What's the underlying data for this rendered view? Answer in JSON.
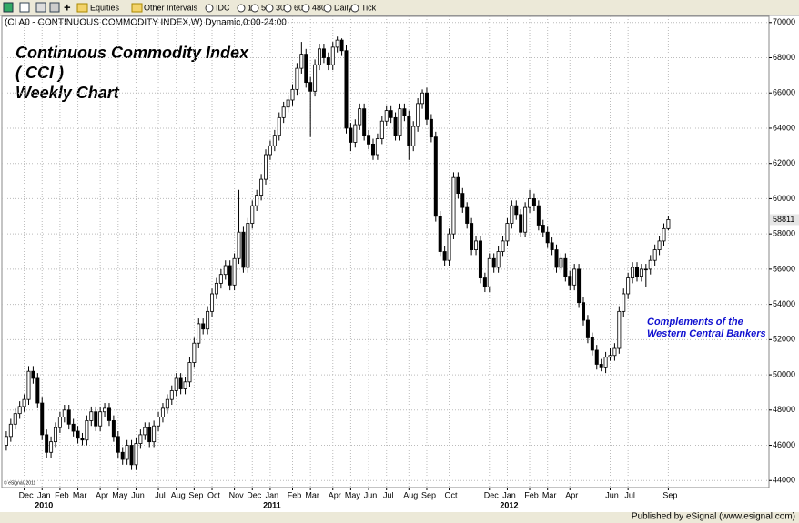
{
  "toolbar": {
    "items": [
      "Equities",
      "Other Intervals",
      "IDC",
      "1",
      "5",
      "30",
      "60",
      "480",
      "Daily",
      "Tick"
    ]
  },
  "chart_data": {
    "type": "candlestick",
    "header": "(CI A0 - CONTINUOUS COMMODITY INDEX,W) Dynamic,0:00-24:00",
    "title_lines": [
      "Continuous Commodity Index",
      "( CCI )",
      "Weekly Chart"
    ],
    "annotation_lines": [
      "Complements of the",
      "Western Central Bankers"
    ],
    "copyright": "© eSignal, 2011",
    "ylim": [
      43600,
      70350
    ],
    "yticks": [
      44000,
      46000,
      48000,
      50000,
      52000,
      54000,
      56000,
      58000,
      60000,
      62000,
      64000,
      66000,
      68000,
      70000
    ],
    "xlim": [
      -1,
      170.5
    ],
    "xticks": [
      {
        "value": 4,
        "label": "Dec"
      },
      {
        "value": 8,
        "label": "Jan"
      },
      {
        "value": 12,
        "label": "Feb"
      },
      {
        "value": 16,
        "label": "Mar"
      },
      {
        "value": 21,
        "label": "Apr"
      },
      {
        "value": 25,
        "label": "May"
      },
      {
        "value": 29,
        "label": "Jun"
      },
      {
        "value": 34,
        "label": "Jul"
      },
      {
        "value": 38,
        "label": "Aug"
      },
      {
        "value": 42,
        "label": "Sep"
      },
      {
        "value": 46,
        "label": "Oct"
      },
      {
        "value": 51,
        "label": "Nov"
      },
      {
        "value": 55,
        "label": "Dec"
      },
      {
        "value": 59,
        "label": "Jan"
      },
      {
        "value": 64,
        "label": "Feb"
      },
      {
        "value": 68,
        "label": "Mar"
      },
      {
        "value": 73,
        "label": "Apr"
      },
      {
        "value": 77,
        "label": "May"
      },
      {
        "value": 81,
        "label": "Jun"
      },
      {
        "value": 85,
        "label": "Jul"
      },
      {
        "value": 90,
        "label": "Aug"
      },
      {
        "value": 94,
        "label": "Sep"
      },
      {
        "value": 99,
        "label": "Oct"
      },
      {
        "value": 108,
        "label": "Dec"
      },
      {
        "value": 112,
        "label": "Jan"
      },
      {
        "value": 117,
        "label": "Feb"
      },
      {
        "value": 121,
        "label": "Mar"
      },
      {
        "value": 126,
        "label": "Apr"
      },
      {
        "value": 135,
        "label": "Jun"
      },
      {
        "value": 139,
        "label": "Jul"
      },
      {
        "value": 148,
        "label": "Sep"
      }
    ],
    "year_ticks": [
      {
        "value": 8,
        "label": "2010"
      },
      {
        "value": 59,
        "label": "2011"
      },
      {
        "value": 112,
        "label": "2012"
      }
    ],
    "grid": true,
    "up_color": "#ffffff",
    "down_color": "#000000",
    "candles": [
      [
        46000,
        46800,
        45700,
        46500
      ],
      [
        46500,
        47500,
        46200,
        47200
      ],
      [
        47200,
        48100,
        46900,
        47800
      ],
      [
        47800,
        48500,
        47500,
        48200
      ],
      [
        48200,
        48900,
        47900,
        48600
      ],
      [
        48600,
        50500,
        48300,
        50200
      ],
      [
        50200,
        50500,
        49500,
        49800
      ],
      [
        49800,
        50100,
        48100,
        48400
      ],
      [
        48400,
        48700,
        46300,
        46600
      ],
      [
        46600,
        46900,
        45300,
        45600
      ],
      [
        45600,
        46500,
        45300,
        46200
      ],
      [
        46200,
        47300,
        45900,
        47000
      ],
      [
        47000,
        47900,
        46700,
        47600
      ],
      [
        47600,
        48300,
        47300,
        48000
      ],
      [
        48000,
        48300,
        46900,
        47200
      ],
      [
        47200,
        47500,
        46500,
        46800
      ],
      [
        46800,
        47100,
        46100,
        46400
      ],
      [
        46400,
        46700,
        46000,
        46300
      ],
      [
        46300,
        47700,
        46000,
        47400
      ],
      [
        47400,
        48200,
        47100,
        47900
      ],
      [
        47900,
        48200,
        46800,
        47100
      ],
      [
        47100,
        48200,
        46800,
        47900
      ],
      [
        47900,
        48400,
        47600,
        48100
      ],
      [
        48100,
        48400,
        47100,
        47400
      ],
      [
        47400,
        47700,
        46200,
        46500
      ],
      [
        46500,
        46800,
        45300,
        45600
      ],
      [
        45600,
        45900,
        44900,
        45200
      ],
      [
        45200,
        46300,
        44900,
        46000
      ],
      [
        46000,
        46300,
        44600,
        44900
      ],
      [
        44900,
        46400,
        44600,
        46100
      ],
      [
        46100,
        46900,
        45800,
        46600
      ],
      [
        46600,
        47300,
        46300,
        47000
      ],
      [
        47000,
        47300,
        45900,
        46200
      ],
      [
        46200,
        47400,
        45900,
        47100
      ],
      [
        47100,
        47900,
        46800,
        47600
      ],
      [
        47600,
        48400,
        47300,
        48100
      ],
      [
        48100,
        48900,
        47800,
        48600
      ],
      [
        48600,
        49400,
        48300,
        49100
      ],
      [
        49100,
        50100,
        48800,
        49800
      ],
      [
        49800,
        50100,
        48900,
        49200
      ],
      [
        49200,
        49900,
        48900,
        49600
      ],
      [
        49600,
        51000,
        49300,
        50700
      ],
      [
        50700,
        52100,
        50400,
        51800
      ],
      [
        51800,
        53200,
        51500,
        52900
      ],
      [
        52900,
        53200,
        52300,
        52600
      ],
      [
        52600,
        53900,
        52300,
        53600
      ],
      [
        53600,
        54900,
        53300,
        54600
      ],
      [
        54600,
        55500,
        54300,
        55200
      ],
      [
        55200,
        56000,
        54900,
        55700
      ],
      [
        55700,
        56500,
        55400,
        56200
      ],
      [
        56200,
        56500,
        54800,
        55100
      ],
      [
        55100,
        56900,
        54800,
        56600
      ],
      [
        56600,
        60500,
        56300,
        58100
      ],
      [
        58100,
        58400,
        55800,
        56100
      ],
      [
        56100,
        58900,
        55800,
        58600
      ],
      [
        58600,
        59900,
        58300,
        59600
      ],
      [
        59600,
        60500,
        59300,
        60200
      ],
      [
        60200,
        61400,
        59900,
        61100
      ],
      [
        61100,
        62800,
        60800,
        62500
      ],
      [
        62500,
        63300,
        62200,
        63000
      ],
      [
        63000,
        63900,
        62700,
        63600
      ],
      [
        63600,
        64900,
        63300,
        64600
      ],
      [
        64600,
        65500,
        64300,
        65200
      ],
      [
        65200,
        65900,
        64900,
        65600
      ],
      [
        65600,
        66500,
        65300,
        66200
      ],
      [
        66200,
        67700,
        65900,
        67400
      ],
      [
        67400,
        68900,
        67100,
        68200
      ],
      [
        68200,
        68500,
        66300,
        66600
      ],
      [
        66600,
        66900,
        63500,
        66100
      ],
      [
        66100,
        67900,
        65800,
        67600
      ],
      [
        67600,
        68800,
        67300,
        68500
      ],
      [
        68500,
        68800,
        67700,
        68000
      ],
      [
        68000,
        68300,
        67300,
        67600
      ],
      [
        67600,
        68900,
        67300,
        68600
      ],
      [
        68600,
        69200,
        68300,
        69000
      ],
      [
        69000,
        69100,
        68100,
        68400
      ],
      [
        68400,
        68700,
        63700,
        64000
      ],
      [
        64000,
        64300,
        62700,
        63200
      ],
      [
        63200,
        64500,
        62900,
        64200
      ],
      [
        64200,
        65400,
        63900,
        65100
      ],
      [
        65100,
        65400,
        63300,
        63600
      ],
      [
        63600,
        63900,
        62800,
        63100
      ],
      [
        63100,
        63400,
        62200,
        62500
      ],
      [
        62500,
        63700,
        62200,
        63400
      ],
      [
        63400,
        64700,
        63100,
        64400
      ],
      [
        64400,
        65300,
        64100,
        65000
      ],
      [
        65000,
        65300,
        64300,
        64600
      ],
      [
        64600,
        64900,
        63300,
        63600
      ],
      [
        63600,
        65400,
        63300,
        65100
      ],
      [
        65100,
        65400,
        64400,
        64700
      ],
      [
        64700,
        65000,
        62200,
        63000
      ],
      [
        63000,
        64400,
        62700,
        64100
      ],
      [
        64100,
        65700,
        63800,
        65400
      ],
      [
        65400,
        66200,
        65100,
        66000
      ],
      [
        66000,
        66300,
        64200,
        64500
      ],
      [
        64500,
        64800,
        63200,
        63500
      ],
      [
        63500,
        63800,
        58700,
        59000
      ],
      [
        59000,
        59300,
        56700,
        57000
      ],
      [
        57000,
        57300,
        56200,
        56500
      ],
      [
        56500,
        58300,
        56200,
        58000
      ],
      [
        58000,
        61500,
        57700,
        61200
      ],
      [
        61200,
        61500,
        60000,
        60300
      ],
      [
        60300,
        60600,
        59200,
        59500
      ],
      [
        59500,
        59800,
        58300,
        58600
      ],
      [
        58600,
        58900,
        56800,
        57100
      ],
      [
        57100,
        57900,
        56800,
        57600
      ],
      [
        57600,
        57900,
        55200,
        55500
      ],
      [
        55500,
        55800,
        54700,
        55000
      ],
      [
        55000,
        56900,
        54700,
        56600
      ],
      [
        56600,
        56900,
        55800,
        56100
      ],
      [
        56100,
        57300,
        55800,
        57000
      ],
      [
        57000,
        57900,
        56700,
        57600
      ],
      [
        57600,
        58900,
        57300,
        58600
      ],
      [
        58600,
        59900,
        58300,
        59600
      ],
      [
        59600,
        59900,
        58800,
        59100
      ],
      [
        59100,
        59400,
        57800,
        58100
      ],
      [
        58100,
        59800,
        57800,
        59500
      ],
      [
        59500,
        60500,
        59200,
        60000
      ],
      [
        60000,
        60300,
        59300,
        59600
      ],
      [
        59600,
        59900,
        58200,
        58500
      ],
      [
        58500,
        58800,
        57800,
        58100
      ],
      [
        58100,
        58400,
        57200,
        57500
      ],
      [
        57500,
        57800,
        56800,
        57100
      ],
      [
        57100,
        57400,
        55800,
        56100
      ],
      [
        56100,
        56900,
        55800,
        56600
      ],
      [
        56600,
        56900,
        55300,
        55600
      ],
      [
        55600,
        55900,
        54800,
        55100
      ],
      [
        55100,
        56300,
        54800,
        56000
      ],
      [
        56000,
        56300,
        53800,
        54100
      ],
      [
        54100,
        54400,
        52800,
        53100
      ],
      [
        53100,
        53400,
        51800,
        52100
      ],
      [
        52100,
        52400,
        51100,
        51400
      ],
      [
        51400,
        51700,
        50300,
        50600
      ],
      [
        50600,
        50900,
        50200,
        50400
      ],
      [
        50400,
        51300,
        50100,
        51000
      ],
      [
        51000,
        51500,
        50800,
        51100
      ],
      [
        51100,
        51800,
        50800,
        51500
      ],
      [
        51500,
        53900,
        51200,
        53600
      ],
      [
        53600,
        54900,
        53300,
        54600
      ],
      [
        54600,
        55800,
        54300,
        55500
      ],
      [
        55500,
        56400,
        55200,
        56100
      ],
      [
        56100,
        56400,
        55300,
        55600
      ],
      [
        55600,
        56300,
        55300,
        56000
      ],
      [
        56000,
        56300,
        55000,
        56000
      ],
      [
        56000,
        56800,
        55700,
        56500
      ],
      [
        56500,
        57400,
        56200,
        57100
      ],
      [
        57100,
        57900,
        56800,
        57600
      ],
      [
        57600,
        58600,
        57300,
        58300
      ],
      [
        58300,
        59000,
        58200,
        58811
      ]
    ]
  },
  "footer": "Published by eSignal (www.esignal.com)"
}
